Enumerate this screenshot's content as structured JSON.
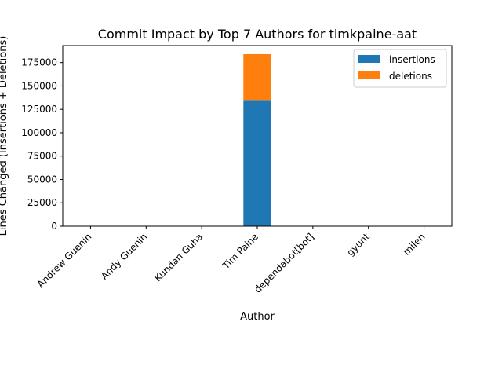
{
  "chart_data": {
    "type": "bar",
    "stacked": true,
    "title": "Commit Impact by Top 7 Authors for timkpaine-aat",
    "xlabel": "Author",
    "ylabel": "Lines Changed (Insertions + Deletions)",
    "categories": [
      "Andrew Guenin",
      "Andy Guenin",
      "Kundan Guha",
      "Tim Paine",
      "dependabot[bot]",
      "gyunt",
      "milen"
    ],
    "series": [
      {
        "name": "insertions",
        "color": "#1f77b4",
        "values": [
          10,
          10,
          10,
          135000,
          10,
          10,
          10
        ]
      },
      {
        "name": "deletions",
        "color": "#ff7f0e",
        "values": [
          5,
          5,
          5,
          49000,
          5,
          5,
          5
        ]
      }
    ],
    "ylim": [
      0,
      193200
    ],
    "yticks": [
      0,
      25000,
      50000,
      75000,
      100000,
      125000,
      150000,
      175000
    ],
    "legend_position": "top-right",
    "grid": false
  }
}
